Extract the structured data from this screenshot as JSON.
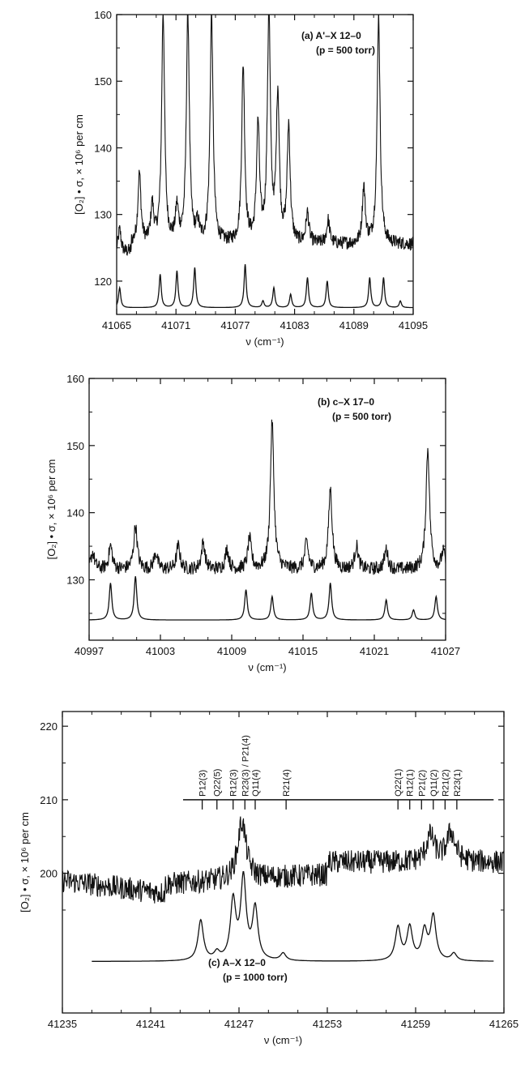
{
  "chart_data": [
    {
      "type": "line",
      "panel": "a",
      "annotation": [
        "(a)  A'–X 12–0",
        "(p = 500 torr)"
      ],
      "xlabel": "ν (cm⁻¹)",
      "ylabel": "[O₂] • σ, × 10⁶ per cm",
      "xlim": [
        41065,
        41095
      ],
      "ylim": [
        115,
        160
      ],
      "xticks": [
        "41065",
        "41071",
        "41077",
        "41083",
        "41089",
        "41095"
      ],
      "yticks": [
        "120",
        "130",
        "140",
        "150",
        "160"
      ],
      "series": [
        {
          "role": "measured",
          "baseline": 125.5,
          "peaks": [
            {
              "x": 41065.3,
              "y": 129
            },
            {
              "x": 41067.3,
              "y": 136
            },
            {
              "x": 41068.6,
              "y": 131
            },
            {
              "x": 41069.7,
              "y": 160
            },
            {
              "x": 41071.1,
              "y": 130.5
            },
            {
              "x": 41072.2,
              "y": 160
            },
            {
              "x": 41073.2,
              "y": 128
            },
            {
              "x": 41074.6,
              "y": 160
            },
            {
              "x": 41077.8,
              "y": 152
            },
            {
              "x": 41079.3,
              "y": 143
            },
            {
              "x": 41080.4,
              "y": 160
            },
            {
              "x": 41081.3,
              "y": 147.5
            },
            {
              "x": 41082.4,
              "y": 143
            },
            {
              "x": 41084.3,
              "y": 130
            },
            {
              "x": 41086.4,
              "y": 129
            },
            {
              "x": 41090.0,
              "y": 134
            },
            {
              "x": 41091.5,
              "y": 160
            }
          ]
        },
        {
          "role": "simulated",
          "baseline": 116,
          "peaks": [
            {
              "x": 41065.3,
              "y": 119
            },
            {
              "x": 41069.4,
              "y": 121
            },
            {
              "x": 41071.1,
              "y": 121.5
            },
            {
              "x": 41072.9,
              "y": 122
            },
            {
              "x": 41078.0,
              "y": 122.5
            },
            {
              "x": 41079.8,
              "y": 117
            },
            {
              "x": 41080.9,
              "y": 119
            },
            {
              "x": 41082.6,
              "y": 118
            },
            {
              "x": 41084.3,
              "y": 120.5
            },
            {
              "x": 41086.3,
              "y": 120
            },
            {
              "x": 41090.6,
              "y": 120.5
            },
            {
              "x": 41092.0,
              "y": 120.5
            },
            {
              "x": 41093.7,
              "y": 117
            }
          ]
        }
      ]
    },
    {
      "type": "line",
      "panel": "b",
      "annotation": [
        "(b)  c–X 17–0",
        "(p = 500 torr)"
      ],
      "xlabel": "ν (cm⁻¹)",
      "ylabel": "[O₂] • σ, × 10⁶ per cm",
      "xlim": [
        40997,
        41027
      ],
      "ylim": [
        121,
        160
      ],
      "xticks": [
        "40997",
        "41003",
        "41009",
        "41015",
        "41021",
        "41027"
      ],
      "yticks": [
        "130",
        "140",
        "150",
        "160"
      ],
      "series": [
        {
          "role": "measured",
          "baseline": 131.5,
          "peaks": [
            {
              "x": 40997.3,
              "y": 134
            },
            {
              "x": 40998.8,
              "y": 135
            },
            {
              "x": 41000.9,
              "y": 138
            },
            {
              "x": 41002.6,
              "y": 134
            },
            {
              "x": 41004.5,
              "y": 135
            },
            {
              "x": 41006.6,
              "y": 135.5
            },
            {
              "x": 41008.6,
              "y": 134.5
            },
            {
              "x": 41010.5,
              "y": 136
            },
            {
              "x": 41012.4,
              "y": 153.5
            },
            {
              "x": 41015.3,
              "y": 135.5
            },
            {
              "x": 41017.3,
              "y": 143.5
            },
            {
              "x": 41019.5,
              "y": 135
            },
            {
              "x": 41022.0,
              "y": 134.5
            },
            {
              "x": 41025.5,
              "y": 149.5
            },
            {
              "x": 41026.8,
              "y": 134
            }
          ]
        },
        {
          "role": "simulated",
          "baseline": 124,
          "peaks": [
            {
              "x": 40998.8,
              "y": 129.5
            },
            {
              "x": 41000.9,
              "y": 130.5
            },
            {
              "x": 41010.2,
              "y": 128.5
            },
            {
              "x": 41012.4,
              "y": 127.5
            },
            {
              "x": 41015.7,
              "y": 128
            },
            {
              "x": 41017.3,
              "y": 129.5
            },
            {
              "x": 41022.0,
              "y": 127
            },
            {
              "x": 41024.3,
              "y": 125.5
            },
            {
              "x": 41026.2,
              "y": 127.5
            }
          ]
        }
      ]
    },
    {
      "type": "line",
      "panel": "c",
      "annotation": [
        "(c)  A–X 12–0",
        "(p = 1000 torr)"
      ],
      "xlabel": "ν (cm⁻¹)",
      "ylabel": "[O₂] • σ, × 10⁶ per cm",
      "xlim": [
        41235,
        41265
      ],
      "ylim": [
        181,
        222
      ],
      "xticks": [
        "41235",
        "41241",
        "41247",
        "41253",
        "41259",
        "41265"
      ],
      "yticks": [
        "200",
        "210",
        "220"
      ],
      "assignment_bar": {
        "y": 210,
        "x_start": 41243.2,
        "x_end": 41264.3
      },
      "line_labels": [
        {
          "x": 41244.5,
          "text": "P12(3)"
        },
        {
          "x": 41245.5,
          "text": "Q22(5)"
        },
        {
          "x": 41246.6,
          "text": "R12(3)"
        },
        {
          "x": 41247.4,
          "text": "R23(3) / P21(4)"
        },
        {
          "x": 41248.1,
          "text": "Q11(4)"
        },
        {
          "x": 41250.2,
          "text": "R21(4)"
        },
        {
          "x": 41257.8,
          "text": "Q22(1)"
        },
        {
          "x": 41258.6,
          "text": "R12(1)"
        },
        {
          "x": 41259.4,
          "text": "P21(2)"
        },
        {
          "x": 41260.2,
          "text": "Q11(2)"
        },
        {
          "x": 41261.0,
          "text": "R21(2)"
        },
        {
          "x": 41261.8,
          "text": "R23(1)"
        }
      ],
      "series": [
        {
          "role": "measured",
          "peaks": [
            {
              "x": 41247.2,
              "y": 207
            },
            {
              "x": 41260.0,
              "y": 205
            },
            {
              "x": 41261.4,
              "y": 205.5
            }
          ]
        },
        {
          "role": "simulated",
          "baseline": 188,
          "x_range": [
            41237.0,
            41264.3
          ],
          "peaks": [
            {
              "x": 41244.4,
              "y": 193.5
            },
            {
              "x": 41245.5,
              "y": 189
            },
            {
              "x": 41246.6,
              "y": 196
            },
            {
              "x": 41247.3,
              "y": 199
            },
            {
              "x": 41248.1,
              "y": 195
            },
            {
              "x": 41250.0,
              "y": 189
            },
            {
              "x": 41257.8,
              "y": 192.5
            },
            {
              "x": 41258.6,
              "y": 192.5
            },
            {
              "x": 41259.6,
              "y": 192
            },
            {
              "x": 41260.2,
              "y": 194
            },
            {
              "x": 41261.6,
              "y": 189
            }
          ]
        }
      ]
    }
  ]
}
